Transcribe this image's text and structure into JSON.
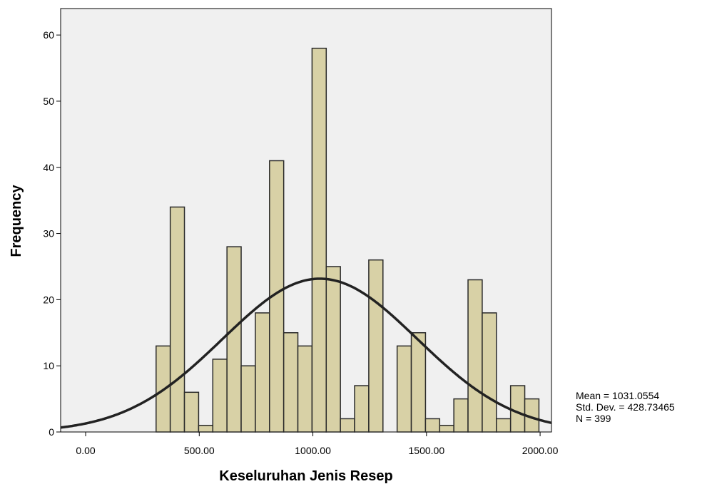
{
  "chart_data": {
    "type": "bar",
    "subtype": "histogram",
    "xlabel": "Keseluruhan Jenis Resep",
    "ylabel": "Frequency",
    "xlim": [
      -110,
      2050
    ],
    "ylim": [
      0,
      64
    ],
    "x_ticks": [
      0,
      500,
      1000,
      1500,
      2000
    ],
    "x_tick_labels": [
      "0.00",
      "500.00",
      "1000.00",
      "1500.00",
      "2000.00"
    ],
    "y_ticks": [
      0,
      10,
      20,
      30,
      40,
      50,
      60
    ],
    "y_tick_labels": [
      "0",
      "10",
      "20",
      "30",
      "40",
      "50",
      "60"
    ],
    "bin_width": 62.4,
    "bins": [
      {
        "start": 310.0,
        "count": 13
      },
      {
        "start": 372.4,
        "count": 34
      },
      {
        "start": 434.8,
        "count": 6
      },
      {
        "start": 497.2,
        "count": 1
      },
      {
        "start": 559.6,
        "count": 11
      },
      {
        "start": 622.0,
        "count": 28
      },
      {
        "start": 684.4,
        "count": 10
      },
      {
        "start": 746.8,
        "count": 18
      },
      {
        "start": 809.2,
        "count": 41
      },
      {
        "start": 871.6,
        "count": 15
      },
      {
        "start": 934.0,
        "count": 13
      },
      {
        "start": 996.4,
        "count": 58
      },
      {
        "start": 1058.8,
        "count": 25
      },
      {
        "start": 1121.2,
        "count": 2
      },
      {
        "start": 1183.6,
        "count": 7
      },
      {
        "start": 1246.0,
        "count": 26
      },
      {
        "start": 1308.4,
        "count": 0
      },
      {
        "start": 1370.8,
        "count": 13
      },
      {
        "start": 1433.2,
        "count": 15
      },
      {
        "start": 1495.6,
        "count": 2
      },
      {
        "start": 1558.0,
        "count": 1
      },
      {
        "start": 1620.4,
        "count": 5
      },
      {
        "start": 1682.8,
        "count": 23
      },
      {
        "start": 1745.2,
        "count": 18
      },
      {
        "start": 1807.6,
        "count": 2
      },
      {
        "start": 1870.0,
        "count": 7
      },
      {
        "start": 1932.4,
        "count": 5
      }
    ],
    "normal_curve": {
      "mean": 1031.0554,
      "std_dev": 428.73465,
      "n": 399
    },
    "grid": false,
    "colors": {
      "bar_fill": "#d8d1a6",
      "bar_stroke": "#2a2a2a",
      "plot_bg": "#f0f0f0",
      "curve": "#222222"
    }
  },
  "stats": {
    "mean": "Mean = 1031.0554",
    "std_dev": "Std. Dev. = 428.73465",
    "n": "N = 399"
  }
}
